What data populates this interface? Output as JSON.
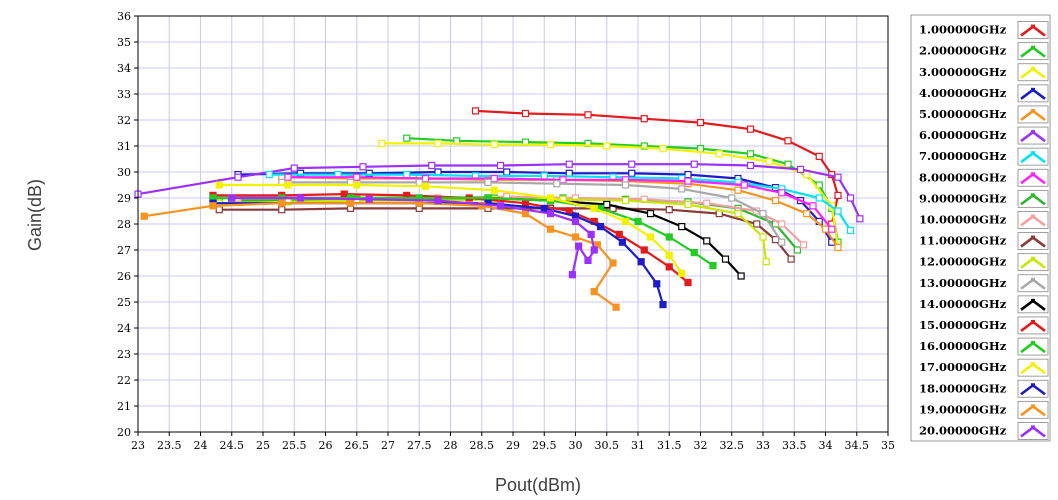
{
  "chart_data": {
    "type": "line",
    "title": "",
    "xlabel": "Pout(dBm)",
    "ylabel": "Gain(dB)",
    "xlim": [
      23,
      35
    ],
    "ylim": [
      20,
      36
    ],
    "x_ticks": [
      "23",
      "23.5",
      "24",
      "24.5",
      "25",
      "25.5",
      "26",
      "26.5",
      "27",
      "27.5",
      "28",
      "28.5",
      "29",
      "29.5",
      "30",
      "30.5",
      "31",
      "31.5",
      "32",
      "32.5",
      "33",
      "33.5",
      "34",
      "34.5",
      "35"
    ],
    "y_ticks": [
      "20",
      "21",
      "22",
      "23",
      "24",
      "25",
      "26",
      "27",
      "28",
      "29",
      "30",
      "31",
      "32",
      "33",
      "34",
      "35",
      "36"
    ],
    "grid": true,
    "legend_position": "right",
    "series": [
      {
        "name": "1.000000GHz",
        "color": "#e41a1c",
        "marker": "open-square",
        "x": [
          28.4,
          29.2,
          30.2,
          31.1,
          32,
          32.8,
          33.4,
          33.9,
          34.1,
          34.2,
          34.1
        ],
        "y": [
          32.35,
          32.25,
          32.2,
          32.05,
          31.9,
          31.65,
          31.2,
          30.6,
          29.9,
          29.1,
          28.0
        ]
      },
      {
        "name": "2.000000GHz",
        "color": "#22cc22",
        "marker": "open-square",
        "x": [
          27.3,
          28.1,
          29.2,
          30.2,
          31.1,
          32,
          32.8,
          33.4,
          33.9,
          34.1,
          34.2
        ],
        "y": [
          31.3,
          31.2,
          31.15,
          31.1,
          31.0,
          30.9,
          30.7,
          30.3,
          29.5,
          28.6,
          27.3
        ]
      },
      {
        "name": "3.000000GHz",
        "color": "#f2f200",
        "marker": "open-square",
        "x": [
          26.9,
          27.8,
          28.7,
          29.6,
          30.5,
          31.4,
          32.3,
          33.1,
          33.7,
          34.1,
          34.2
        ],
        "y": [
          31.1,
          31.1,
          31.05,
          31.05,
          31.0,
          30.9,
          30.7,
          30.4,
          29.9,
          28.7,
          27.1
        ]
      },
      {
        "name": "4.000000GHz",
        "color": "#1c1cc8",
        "marker": "open-square",
        "x": [
          24.6,
          25.6,
          26.7,
          27.8,
          28.9,
          29.9,
          30.9,
          31.8,
          32.6,
          33.2,
          33.6,
          33.9,
          34.1
        ],
        "y": [
          29.9,
          29.95,
          29.95,
          30.0,
          30.0,
          29.95,
          29.95,
          29.9,
          29.75,
          29.4,
          28.9,
          28.1,
          27.3
        ]
      },
      {
        "name": "5.000000GHz",
        "color": "#f7931e",
        "marker": "open-square",
        "x": [
          25.3,
          26.4,
          27.5,
          28.6,
          29.7,
          30.8,
          31.8,
          32.6,
          33.2,
          33.7,
          34.0,
          34.2
        ],
        "y": [
          29.8,
          29.75,
          29.75,
          29.7,
          29.7,
          29.65,
          29.55,
          29.3,
          28.9,
          28.4,
          27.8,
          27.1
        ]
      },
      {
        "name": "6.000000GHz",
        "color": "#9b30ff",
        "marker": "open-square",
        "x": [
          23.0,
          24.6,
          25.5,
          26.6,
          27.7,
          28.8,
          29.9,
          30.9,
          31.9,
          32.8,
          33.6,
          34.2,
          34.4,
          34.55
        ],
        "y": [
          29.15,
          29.8,
          30.15,
          30.2,
          30.25,
          30.25,
          30.3,
          30.3,
          30.3,
          30.25,
          30.1,
          29.8,
          29.0,
          28.2
        ]
      },
      {
        "name": "7.000000GHz",
        "color": "#00e5ee",
        "marker": "open-square",
        "x": [
          25.1,
          26.2,
          27.3,
          28.4,
          29.5,
          30.6,
          31.7,
          32.6,
          33.3,
          33.9,
          34.2,
          34.4
        ],
        "y": [
          29.9,
          29.9,
          29.9,
          29.85,
          29.85,
          29.8,
          29.75,
          29.6,
          29.35,
          29.0,
          28.5,
          27.75
        ]
      },
      {
        "name": "8.000000GHz",
        "color": "#ff20ff",
        "marker": "open-square",
        "x": [
          25.4,
          26.5,
          27.6,
          28.7,
          29.8,
          30.8,
          31.8,
          32.7,
          33.3,
          33.8,
          34.1
        ],
        "y": [
          29.8,
          29.8,
          29.75,
          29.75,
          29.7,
          29.7,
          29.65,
          29.5,
          29.2,
          28.7,
          27.8
        ]
      },
      {
        "name": "9.000000GHz",
        "color": "#2eb82e",
        "marker": "open-square",
        "x": [
          24.4,
          25.4,
          26.5,
          27.6,
          28.7,
          29.8,
          30.8,
          31.8,
          32.6,
          33.2,
          33.55
        ],
        "y": [
          28.9,
          28.9,
          28.95,
          28.95,
          29.0,
          29.0,
          28.95,
          28.85,
          28.6,
          28.0,
          27.0
        ]
      },
      {
        "name": "10.00000GHz",
        "color": "#f4a0a0",
        "marker": "open-square",
        "x": [
          24.6,
          25.6,
          26.7,
          27.8,
          28.9,
          30.0,
          31.1,
          32.1,
          32.9,
          33.3,
          33.65
        ],
        "y": [
          29.0,
          29.0,
          29.0,
          29.0,
          29.05,
          29.0,
          28.95,
          28.8,
          28.5,
          28.0,
          27.2
        ]
      },
      {
        "name": "11.00000GHz",
        "color": "#8b3a3a",
        "marker": "open-square",
        "x": [
          24.3,
          25.3,
          26.4,
          27.5,
          28.6,
          29.6,
          30.6,
          31.5,
          32.3,
          32.9,
          33.2,
          33.45
        ],
        "y": [
          28.55,
          28.55,
          28.6,
          28.6,
          28.6,
          28.6,
          28.6,
          28.55,
          28.4,
          28.0,
          27.4,
          26.65
        ]
      },
      {
        "name": "12.00000GHz",
        "color": "#c8e600",
        "marker": "open-square",
        "x": [
          24.3,
          25.4,
          26.5,
          27.6,
          28.7,
          29.8,
          30.8,
          31.8,
          32.6,
          33.0,
          33.05
        ],
        "y": [
          28.8,
          28.85,
          28.9,
          28.9,
          28.95,
          28.95,
          28.9,
          28.75,
          28.4,
          27.5,
          26.55
        ]
      },
      {
        "name": "13.00000GHz",
        "color": "#a8a8a8",
        "marker": "open-square",
        "x": [
          25.3,
          26.4,
          27.5,
          28.6,
          29.7,
          30.8,
          31.7,
          32.5,
          33.0,
          33.3
        ],
        "y": [
          29.6,
          29.6,
          29.6,
          29.6,
          29.55,
          29.5,
          29.35,
          29.0,
          28.4,
          27.3
        ]
      },
      {
        "name": "14.00000GHz",
        "color": "#000000",
        "marker": "open-square",
        "x": [
          24.2,
          25.3,
          26.4,
          27.5,
          28.6,
          29.6,
          30.5,
          31.2,
          31.7,
          32.1,
          32.4,
          32.65
        ],
        "y": [
          29.0,
          29.0,
          29.0,
          29.0,
          29.0,
          28.9,
          28.75,
          28.4,
          27.9,
          27.35,
          26.65,
          26.0
        ]
      },
      {
        "name": "15.00000GHz",
        "color": "#e41a1c",
        "marker": "filled-square",
        "x": [
          24.2,
          25.3,
          26.3,
          27.3,
          28.3,
          29.2,
          29.9,
          30.3,
          30.7,
          31.1,
          31.5,
          31.8
        ],
        "y": [
          29.1,
          29.1,
          29.15,
          29.1,
          29.0,
          28.8,
          28.5,
          28.1,
          27.6,
          27.0,
          26.35,
          25.75
        ]
      },
      {
        "name": "16.00000GHz",
        "color": "#22cc22",
        "marker": "filled-square",
        "x": [
          24.2,
          25.3,
          26.4,
          27.5,
          28.6,
          29.6,
          30.4,
          31.0,
          31.5,
          31.9,
          32.2
        ],
        "y": [
          29.0,
          29.0,
          29.0,
          29.0,
          29.0,
          28.9,
          28.6,
          28.1,
          27.5,
          26.9,
          26.4
        ]
      },
      {
        "name": "17.00000GHz",
        "color": "#f2f200",
        "marker": "filled-square",
        "x": [
          24.3,
          25.4,
          26.5,
          27.6,
          28.7,
          29.6,
          30.3,
          30.8,
          31.2,
          31.5,
          31.7
        ],
        "y": [
          29.5,
          29.5,
          29.5,
          29.45,
          29.3,
          29.0,
          28.6,
          28.1,
          27.5,
          26.8,
          26.1
        ]
      },
      {
        "name": "18.00000GHz",
        "color": "#1c1cc8",
        "marker": "filled-square",
        "x": [
          24.2,
          25.3,
          26.4,
          27.5,
          28.6,
          29.5,
          30.0,
          30.4,
          30.75,
          31.05,
          31.3,
          31.4
        ],
        "y": [
          28.8,
          28.8,
          28.8,
          28.8,
          28.8,
          28.6,
          28.3,
          27.9,
          27.3,
          26.55,
          25.7,
          24.9
        ]
      },
      {
        "name": "19.00000GHz",
        "color": "#f7931e",
        "marker": "filled-square",
        "x": [
          23.1,
          24.2,
          25.3,
          26.4,
          27.5,
          28.5,
          29.2,
          29.6,
          30.0,
          30.35,
          30.6,
          30.3,
          30.65
        ],
        "y": [
          28.3,
          28.7,
          28.8,
          28.8,
          28.8,
          28.7,
          28.4,
          27.8,
          27.5,
          27.2,
          26.5,
          25.4,
          24.8
        ]
      },
      {
        "name": "20.00000GHz",
        "color": "#9b30ff",
        "marker": "filled-square",
        "x": [
          24.5,
          25.6,
          26.7,
          27.8,
          28.8,
          29.6,
          30.0,
          30.25,
          30.3,
          30.2,
          30.05,
          29.95
        ],
        "y": [
          29.0,
          29.0,
          28.95,
          28.9,
          28.7,
          28.4,
          28.1,
          27.6,
          27.0,
          26.6,
          27.15,
          26.05
        ]
      }
    ]
  }
}
